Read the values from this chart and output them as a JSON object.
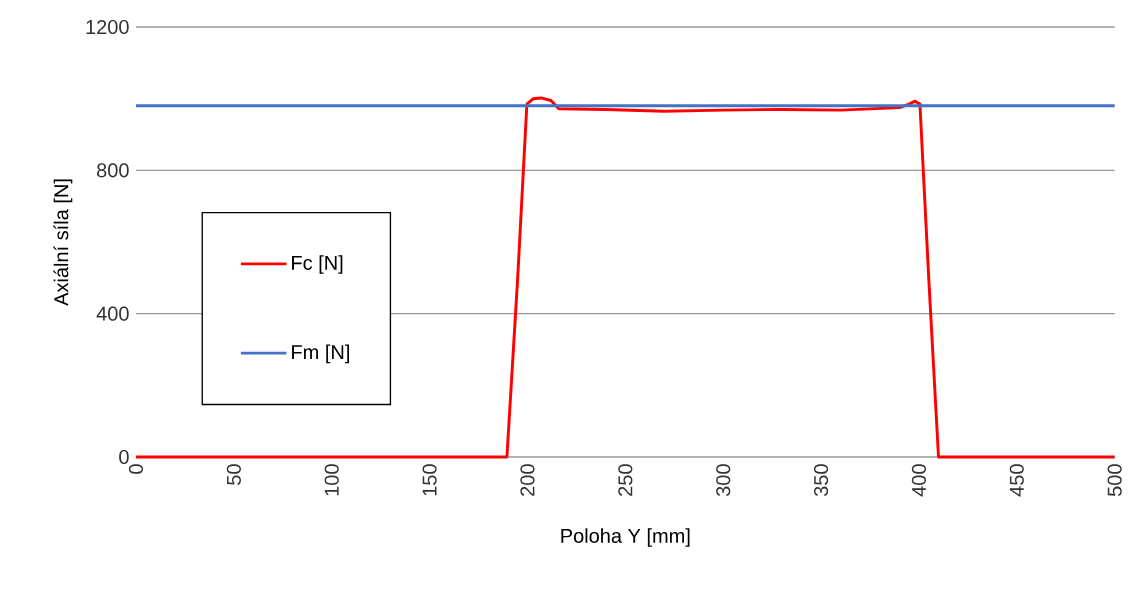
{
  "chart_data": {
    "type": "line",
    "xlabel": "Poloha Y [mm]",
    "ylabel": "Axiální síla [N]",
    "xlim": [
      0,
      500
    ],
    "xticks": [
      0,
      50,
      100,
      150,
      200,
      250,
      300,
      350,
      400,
      450,
      500
    ],
    "ylim": [
      0,
      1200
    ],
    "yticks": [
      0,
      400,
      800,
      1200
    ],
    "grid": "y",
    "legend": "left",
    "series": [
      {
        "name": "Fc [N]",
        "color": "#ff0000",
        "x": [
          0,
          180,
          189.5,
          195,
          199.7,
          203,
          207,
          212,
          216,
          240,
          270,
          300,
          330,
          360,
          390,
          395,
          398,
          400.5,
          405,
          410,
          420,
          500
        ],
        "values": [
          0,
          0,
          0,
          500,
          985,
          1000,
          1002,
          995,
          972,
          970,
          965,
          968,
          970,
          968,
          975,
          985,
          993,
          985,
          500,
          0,
          0,
          0
        ]
      },
      {
        "name": "Fm [N]",
        "color": "#4472c4",
        "x": [
          0,
          500
        ],
        "values": [
          980,
          980
        ]
      }
    ]
  }
}
